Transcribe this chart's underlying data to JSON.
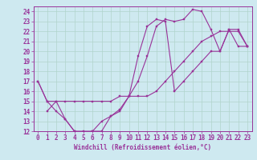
{
  "bg_color": "#cee9f0",
  "grid_color": "#b0d4cc",
  "line_color": "#993399",
  "spine_color": "#993399",
  "xlim": [
    -0.5,
    23.5
  ],
  "ylim": [
    12,
    24.5
  ],
  "xticks": [
    0,
    1,
    2,
    3,
    4,
    5,
    6,
    7,
    8,
    9,
    10,
    11,
    12,
    13,
    14,
    15,
    16,
    17,
    18,
    19,
    20,
    21,
    22,
    23
  ],
  "yticks": [
    12,
    13,
    14,
    15,
    16,
    17,
    18,
    19,
    20,
    21,
    22,
    23,
    24
  ],
  "xlabel": "Windchill (Refroidissement éolien,°C)",
  "tick_labelsize": 5.5,
  "series": [
    [
      [
        0,
        17.0
      ],
      [
        1,
        15.0
      ],
      [
        2,
        14.0
      ],
      [
        3,
        13.2
      ],
      [
        4,
        12.0
      ],
      [
        5,
        12.0
      ],
      [
        6,
        12.0
      ],
      [
        7,
        13.0
      ],
      [
        8,
        13.5
      ],
      [
        9,
        14.2
      ],
      [
        10,
        15.5
      ],
      [
        11,
        17.0
      ],
      [
        12,
        19.5
      ],
      [
        13,
        22.5
      ],
      [
        14,
        23.2
      ],
      [
        15,
        23.0
      ],
      [
        16,
        23.2
      ],
      [
        17,
        24.2
      ],
      [
        18,
        24.0
      ],
      [
        19,
        22.2
      ],
      [
        20,
        20.0
      ],
      [
        21,
        22.2
      ],
      [
        22,
        20.5
      ],
      [
        23,
        20.5
      ]
    ],
    [
      [
        0,
        17.0
      ],
      [
        1,
        15.0
      ],
      [
        2,
        15.0
      ],
      [
        3,
        15.0
      ],
      [
        4,
        15.0
      ],
      [
        5,
        15.0
      ],
      [
        6,
        15.0
      ],
      [
        7,
        15.0
      ],
      [
        8,
        15.0
      ],
      [
        9,
        15.5
      ],
      [
        10,
        15.5
      ],
      [
        11,
        15.5
      ],
      [
        12,
        15.5
      ],
      [
        13,
        16.0
      ],
      [
        14,
        17.0
      ],
      [
        15,
        18.0
      ],
      [
        16,
        19.0
      ],
      [
        17,
        20.0
      ],
      [
        18,
        21.0
      ],
      [
        19,
        21.5
      ],
      [
        20,
        22.0
      ],
      [
        21,
        22.0
      ],
      [
        22,
        22.0
      ],
      [
        23,
        20.5
      ]
    ],
    [
      [
        1,
        14.0
      ],
      [
        2,
        15.0
      ],
      [
        3,
        13.2
      ],
      [
        4,
        12.0
      ],
      [
        5,
        11.8
      ],
      [
        6,
        12.0
      ],
      [
        7,
        12.0
      ],
      [
        8,
        13.5
      ],
      [
        9,
        14.0
      ],
      [
        10,
        15.5
      ],
      [
        11,
        19.5
      ],
      [
        12,
        22.5
      ],
      [
        13,
        23.2
      ],
      [
        14,
        23.0
      ],
      [
        15,
        16.0
      ],
      [
        16,
        17.0
      ],
      [
        17,
        18.0
      ],
      [
        18,
        19.0
      ],
      [
        19,
        20.0
      ],
      [
        20,
        20.0
      ],
      [
        21,
        22.2
      ],
      [
        22,
        22.2
      ],
      [
        23,
        20.5
      ]
    ]
  ]
}
